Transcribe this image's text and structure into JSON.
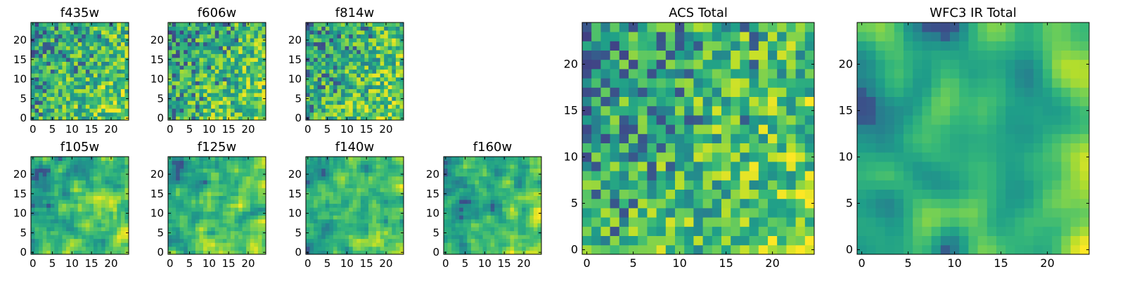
{
  "chart_data": [
    {
      "type": "heatmap",
      "title": "f435w",
      "x_ticks": [
        "0",
        "5",
        "10",
        "15",
        "20"
      ],
      "y_ticks": [
        "0",
        "5",
        "10",
        "15",
        "20"
      ],
      "xlim": [
        -0.5,
        24.5
      ],
      "ylim": [
        -0.5,
        24.5
      ],
      "grid_size": [
        25,
        25
      ],
      "colormap": "viridis",
      "grid": false
    },
    {
      "type": "heatmap",
      "title": "f606w",
      "x_ticks": [
        "0",
        "5",
        "10",
        "15",
        "20"
      ],
      "y_ticks": [
        "0",
        "5",
        "10",
        "15",
        "20"
      ],
      "xlim": [
        -0.5,
        24.5
      ],
      "ylim": [
        -0.5,
        24.5
      ],
      "grid_size": [
        25,
        25
      ],
      "colormap": "viridis",
      "grid": false
    },
    {
      "type": "heatmap",
      "title": "f814w",
      "x_ticks": [
        "0",
        "5",
        "10",
        "15",
        "20"
      ],
      "y_ticks": [
        "0",
        "5",
        "10",
        "15",
        "20"
      ],
      "xlim": [
        -0.5,
        24.5
      ],
      "ylim": [
        -0.5,
        24.5
      ],
      "grid_size": [
        25,
        25
      ],
      "colormap": "viridis",
      "grid": false
    },
    {
      "type": "heatmap",
      "title": "f105w",
      "x_ticks": [
        "0",
        "5",
        "10",
        "15",
        "20"
      ],
      "y_ticks": [
        "0",
        "5",
        "10",
        "15",
        "20"
      ],
      "xlim": [
        -0.5,
        24.5
      ],
      "ylim": [
        -0.5,
        24.5
      ],
      "grid_size": [
        25,
        25
      ],
      "colormap": "viridis",
      "grid": false
    },
    {
      "type": "heatmap",
      "title": "f125w",
      "x_ticks": [
        "0",
        "5",
        "10",
        "15",
        "20"
      ],
      "y_ticks": [
        "0",
        "5",
        "10",
        "15",
        "20"
      ],
      "xlim": [
        -0.5,
        24.5
      ],
      "ylim": [
        -0.5,
        24.5
      ],
      "grid_size": [
        25,
        25
      ],
      "colormap": "viridis",
      "grid": false
    },
    {
      "type": "heatmap",
      "title": "f140w",
      "x_ticks": [
        "0",
        "5",
        "10",
        "15",
        "20"
      ],
      "y_ticks": [
        "0",
        "5",
        "10",
        "15",
        "20"
      ],
      "xlim": [
        -0.5,
        24.5
      ],
      "ylim": [
        -0.5,
        24.5
      ],
      "grid_size": [
        25,
        25
      ],
      "colormap": "viridis",
      "grid": false
    },
    {
      "type": "heatmap",
      "title": "f160w",
      "x_ticks": [
        "0",
        "5",
        "10",
        "15",
        "20"
      ],
      "y_ticks": [
        "0",
        "5",
        "10",
        "15",
        "20"
      ],
      "xlim": [
        -0.5,
        24.5
      ],
      "ylim": [
        -0.5,
        24.5
      ],
      "grid_size": [
        25,
        25
      ],
      "colormap": "viridis",
      "grid": false
    },
    {
      "type": "heatmap",
      "title": "ACS Total",
      "x_ticks": [
        "0",
        "5",
        "10",
        "15",
        "20"
      ],
      "y_ticks": [
        "0",
        "5",
        "10",
        "15",
        "20"
      ],
      "xlim": [
        -0.5,
        24.5
      ],
      "ylim": [
        -0.5,
        24.5
      ],
      "grid_size": [
        25,
        25
      ],
      "colormap": "viridis",
      "grid": false
    },
    {
      "type": "heatmap",
      "title": "WFC3 IR Total",
      "x_ticks": [
        "0",
        "5",
        "10",
        "15",
        "20"
      ],
      "y_ticks": [
        "0",
        "5",
        "10",
        "15",
        "20"
      ],
      "xlim": [
        -0.5,
        24.5
      ],
      "ylim": [
        -0.5,
        24.5
      ],
      "grid_size": [
        25,
        25
      ],
      "colormap": "viridis",
      "grid": false
    }
  ]
}
